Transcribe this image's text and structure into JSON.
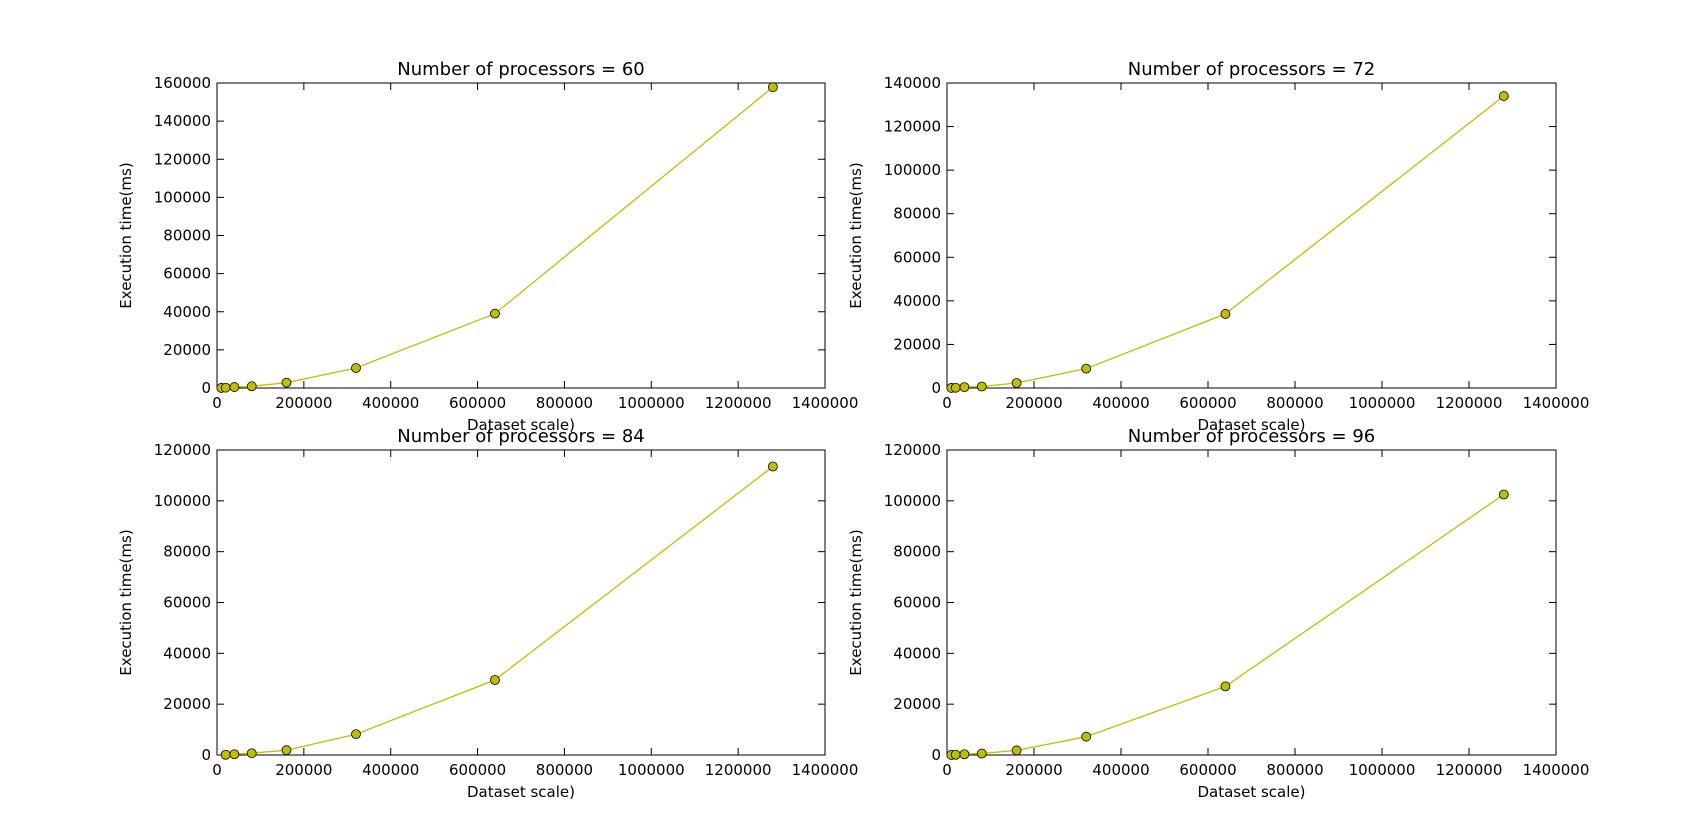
{
  "chart_data": [
    {
      "type": "line",
      "title": "Number of processors = 60",
      "xlabel": "Dataset scale)",
      "ylabel": "Execution time(ms)",
      "xlim": [
        0,
        1400000
      ],
      "ylim": [
        0,
        160000
      ],
      "xticks": [
        0,
        200000,
        400000,
        600000,
        800000,
        1000000,
        1200000,
        1400000
      ],
      "yticks": [
        0,
        20000,
        40000,
        60000,
        80000,
        100000,
        120000,
        140000,
        160000
      ],
      "grid": false,
      "color": "#bfbf00",
      "series": [
        {
          "x": [
            10000,
            20000,
            40000,
            80000,
            160000,
            320000,
            640000,
            1280000
          ],
          "y": [
            40,
            150,
            500,
            900,
            2800,
            10500,
            39000,
            157800
          ]
        }
      ]
    },
    {
      "type": "line",
      "title": "Number of processors = 72",
      "xlabel": "Dataset scale)",
      "ylabel": "Execution time(ms)",
      "xlim": [
        0,
        1400000
      ],
      "ylim": [
        0,
        140000
      ],
      "xticks": [
        0,
        200000,
        400000,
        600000,
        800000,
        1000000,
        1200000,
        1400000
      ],
      "yticks": [
        0,
        20000,
        40000,
        60000,
        80000,
        100000,
        120000,
        140000
      ],
      "grid": false,
      "color": "#bfbf00",
      "series": [
        {
          "x": [
            10000,
            20000,
            40000,
            80000,
            160000,
            320000,
            640000,
            1280000
          ],
          "y": [
            30,
            120,
            400,
            700,
            2300,
            8900,
            34000,
            134000
          ]
        }
      ]
    },
    {
      "type": "line",
      "title": "Number of processors = 84",
      "xlabel": "Dataset scale)",
      "ylabel": "Execution time(ms)",
      "xlim": [
        0,
        1400000
      ],
      "ylim": [
        0,
        120000
      ],
      "xticks": [
        0,
        200000,
        400000,
        600000,
        800000,
        1000000,
        1200000,
        1400000
      ],
      "yticks": [
        0,
        20000,
        40000,
        60000,
        80000,
        100000,
        120000
      ],
      "grid": false,
      "color": "#bfbf00",
      "series": [
        {
          "x": [
            20000,
            40000,
            80000,
            160000,
            320000,
            640000,
            1280000
          ],
          "y": [
            100,
            300,
            700,
            1900,
            8200,
            29500,
            113500
          ]
        }
      ]
    },
    {
      "type": "line",
      "title": "Number of processors = 96",
      "xlabel": "Dataset scale)",
      "ylabel": "Execution time(ms)",
      "xlim": [
        0,
        1400000
      ],
      "ylim": [
        0,
        120000
      ],
      "xticks": [
        0,
        200000,
        400000,
        600000,
        800000,
        1000000,
        1200000,
        1400000
      ],
      "yticks": [
        0,
        20000,
        40000,
        60000,
        80000,
        100000,
        120000
      ],
      "grid": false,
      "color": "#bfbf00",
      "series": [
        {
          "x": [
            10000,
            20000,
            40000,
            80000,
            160000,
            320000,
            640000,
            1280000
          ],
          "y": [
            30,
            100,
            300,
            600,
            1800,
            7200,
            27000,
            102500
          ]
        }
      ]
    }
  ]
}
